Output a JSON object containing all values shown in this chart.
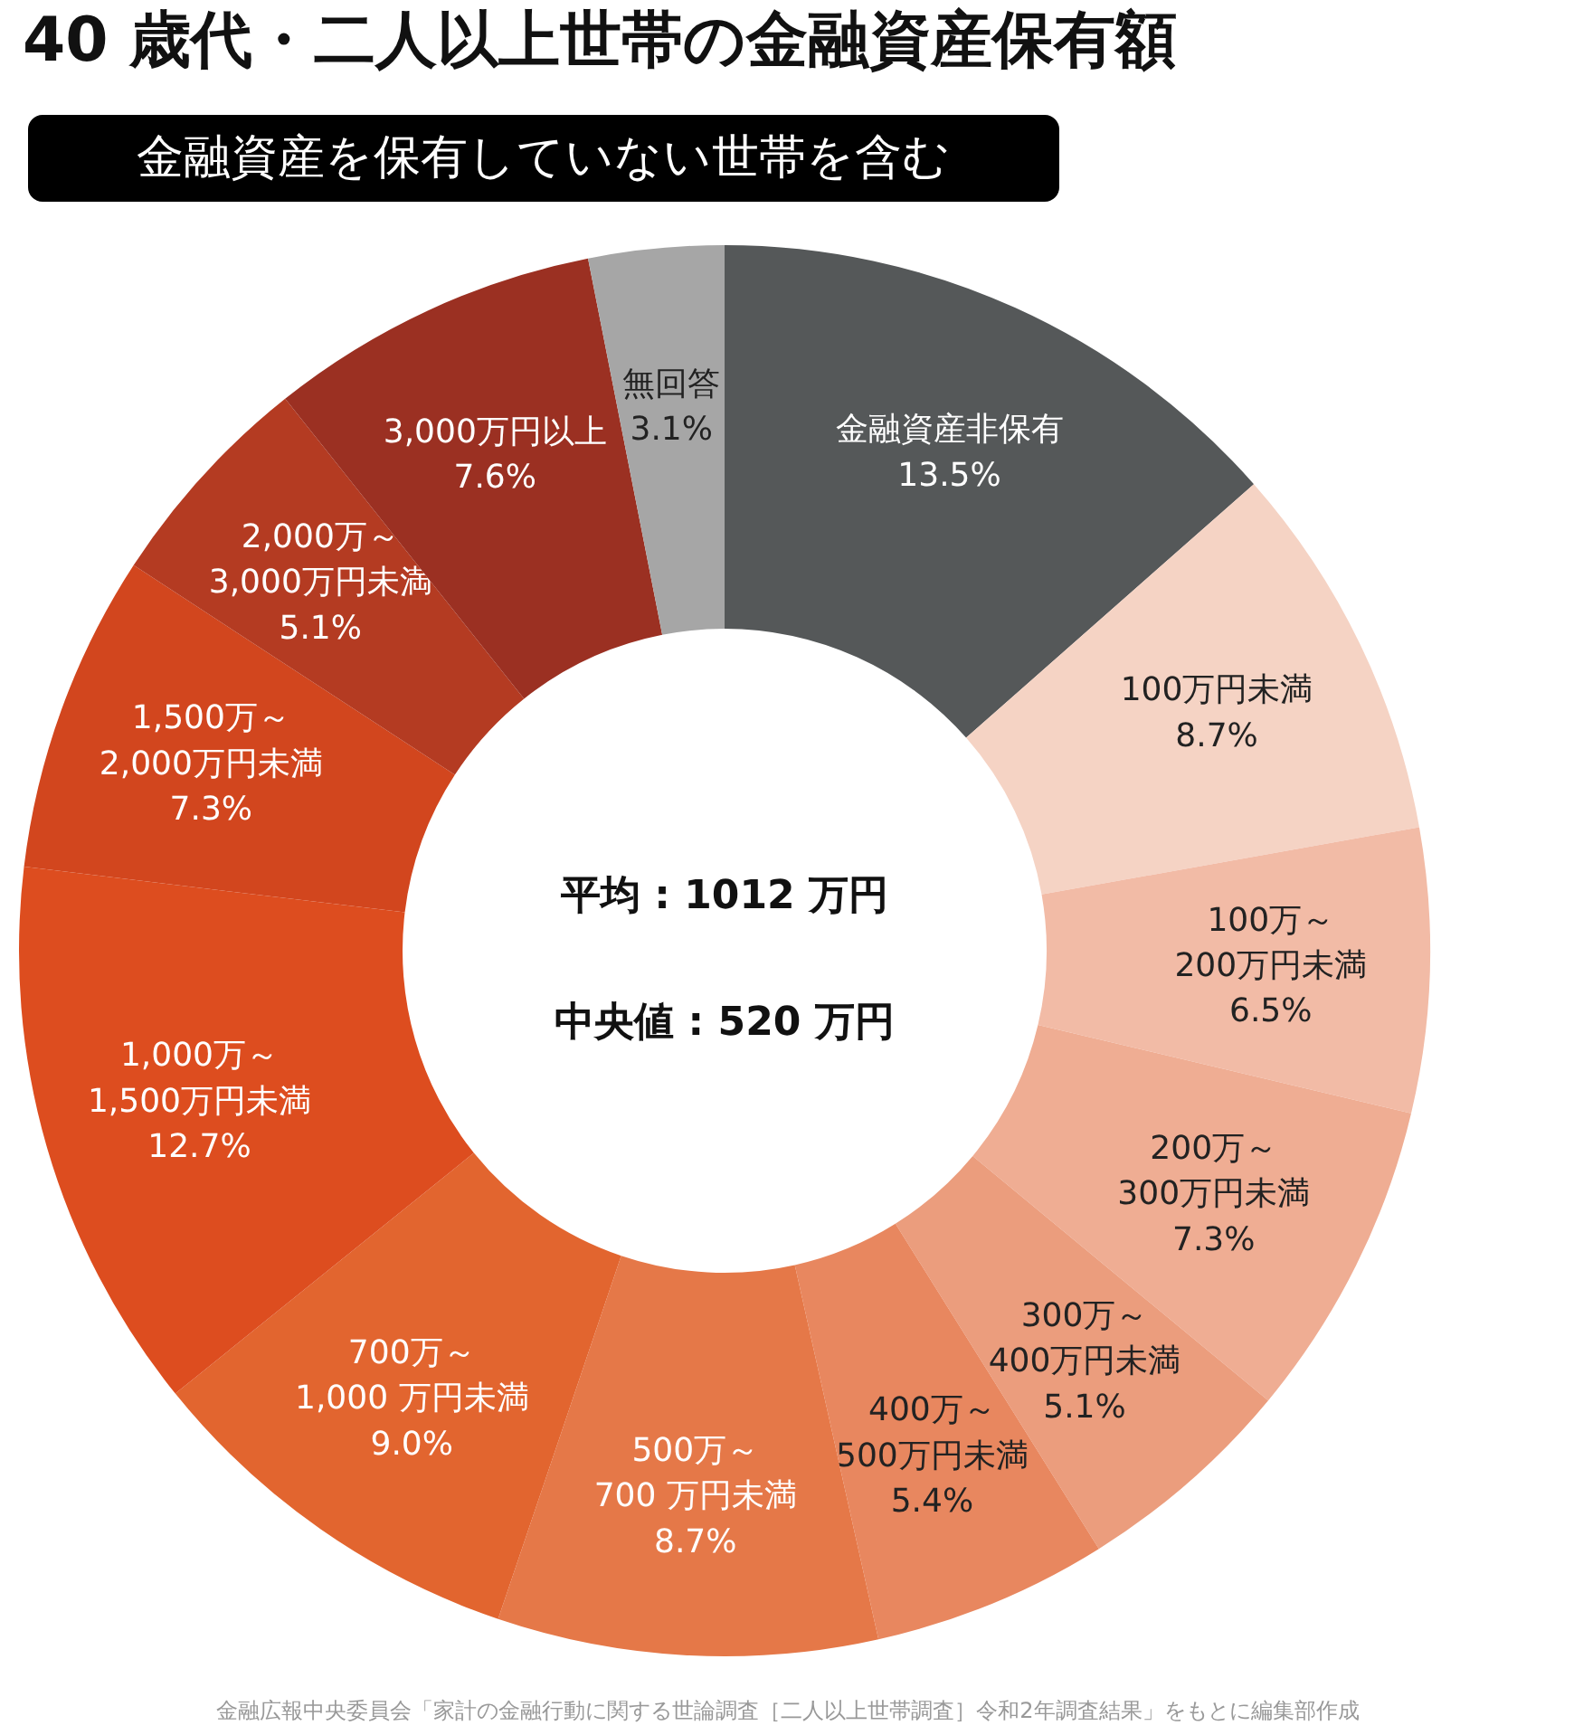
{
  "chart_data": {
    "type": "donut",
    "title": "40 歳代・二人以上世帯の金融資産保有額",
    "subtitle": "金融資産を保有していない世帯を含む",
    "categories": [
      "金融資産非保有",
      "100万円未満",
      "100万～ 200万円未満",
      "200万～ 300万円未満",
      "300万～ 400万円未満",
      "400万～ 500万円未満",
      "500万～\n700 万円未満",
      "700万～\n1,000 万円未満",
      "1,000万～\n1,500万円未満",
      "1,500万～\n2,000万円未満",
      "2,000万～\n3,000万円未満",
      "3,000万円以上",
      "無回答"
    ],
    "values": [
      13.5,
      8.7,
      6.5,
      7.3,
      5.1,
      5.4,
      8.7,
      9.0,
      12.7,
      7.3,
      5.1,
      7.6,
      3.1
    ],
    "colors": [
      "#555859",
      "#f5d3c4",
      "#f2bba6",
      "#efad93",
      "#eb9d7d",
      "#e8875f",
      "#e57848",
      "#e2652f",
      "#dd4d1f",
      "#d2461e",
      "#b43b22",
      "#9b3022",
      "#a6a6a6"
    ],
    "value_labels": [
      "13.5%",
      "8.7%",
      "6.5%",
      "7.3%",
      "5.1%",
      "5.4%",
      "8.7%",
      "9.0%",
      "12.7%",
      "7.3%",
      "5.1%",
      "7.6%",
      "3.1%"
    ],
    "annotations": [
      "平均 : 1012 万円",
      "中央値 : 520 万円",
      "金融広報中央委員会「家計の金融行動に関する世論調査［二人以上世帯調査］令和2年調査結果」をもとに編集部作成"
    ]
  }
}
